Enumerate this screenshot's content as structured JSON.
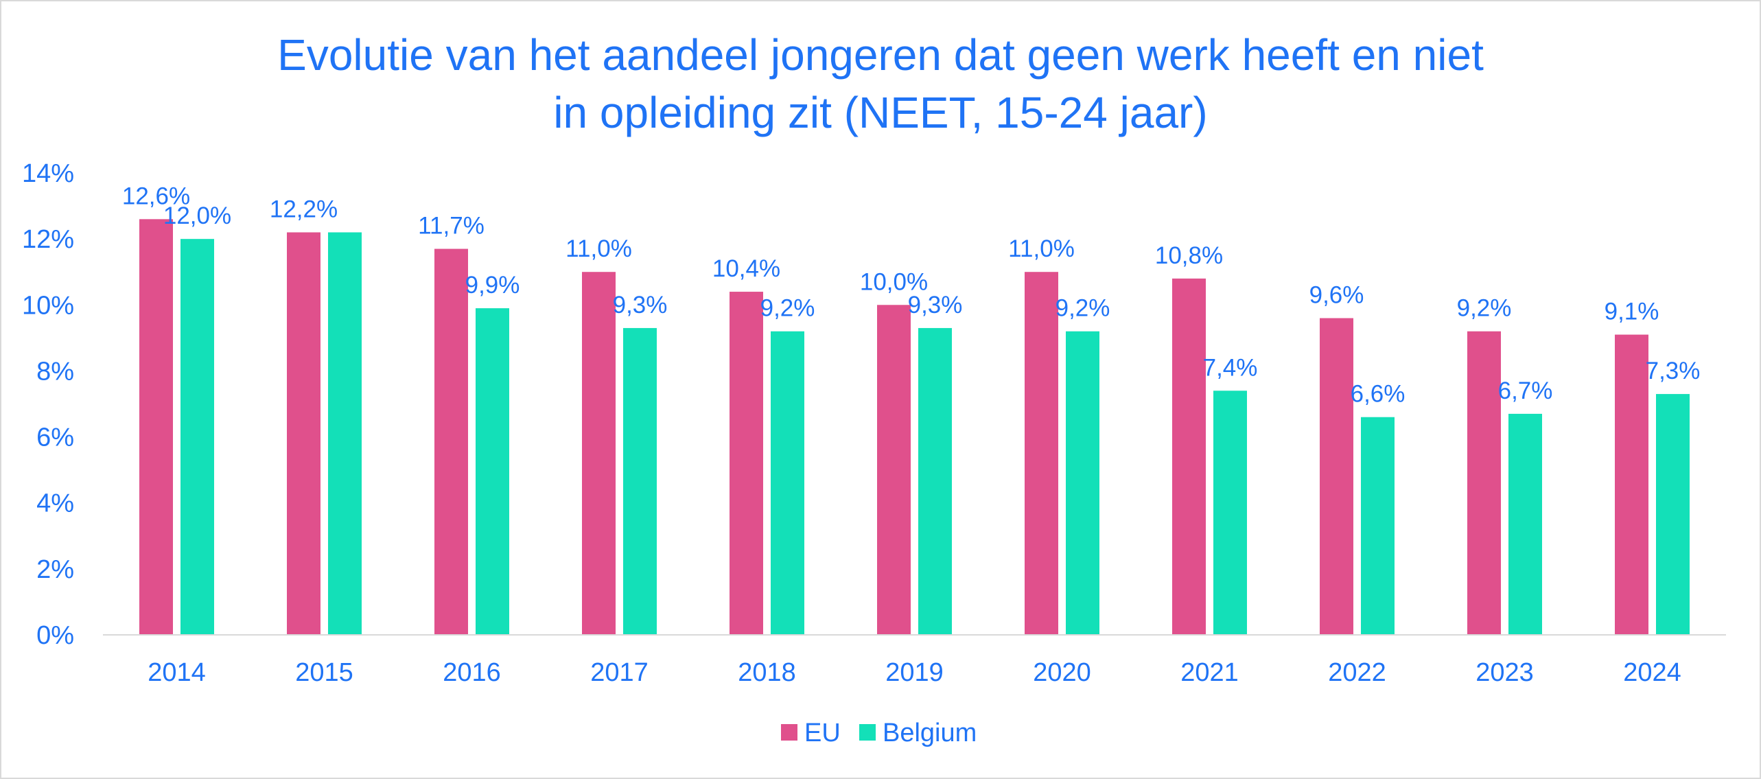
{
  "chart_data": {
    "type": "bar",
    "title_line1": "Evolutie van het aandeel jongeren dat geen werk heeft en niet",
    "title_line2": "in opleiding zit (NEET, 15-24 jaar)",
    "categories": [
      "2014",
      "2015",
      "2016",
      "2017",
      "2018",
      "2019",
      "2020",
      "2021",
      "2022",
      "2023",
      "2024"
    ],
    "series": [
      {
        "name": "EU",
        "color": "#e0508c",
        "values": [
          12.6,
          12.2,
          11.7,
          11.0,
          10.4,
          10.0,
          11.0,
          10.8,
          9.6,
          9.2,
          9.1
        ],
        "labels": [
          "12,6%",
          "12,2%",
          "11,7%",
          "11,0%",
          "10,4%",
          "10,0%",
          "11,0%",
          "10,8%",
          "9,6%",
          "9,2%",
          "9,1%"
        ]
      },
      {
        "name": "Belgium",
        "color": "#13e0b8",
        "values": [
          12.0,
          12.2,
          9.9,
          9.3,
          9.2,
          9.3,
          9.2,
          7.4,
          6.6,
          6.7,
          7.3
        ],
        "labels": [
          "12,0%",
          "",
          "9,9%",
          "9,3%",
          "9,2%",
          "9,3%",
          "9,2%",
          "7,4%",
          "6,6%",
          "6,7%",
          "7,3%"
        ]
      }
    ],
    "ylim": [
      0,
      14
    ],
    "yticks": [
      0,
      2,
      4,
      6,
      8,
      10,
      12,
      14
    ],
    "ytick_labels": [
      "0%",
      "2%",
      "4%",
      "6%",
      "8%",
      "10%",
      "12%",
      "14%"
    ],
    "legend_position": "bottom",
    "grid": false
  }
}
